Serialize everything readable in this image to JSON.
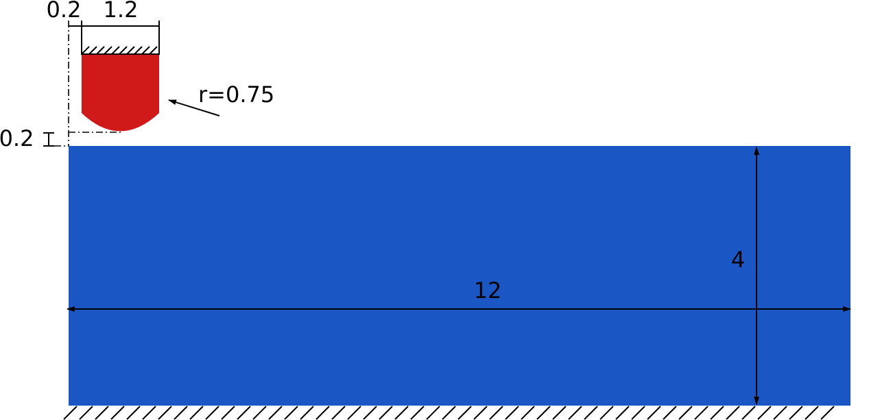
{
  "colors": {
    "block": "#1a56c4",
    "indenter": "#d01919",
    "line": "#000000",
    "background": "#ffffff"
  },
  "labels": {
    "gap_x": "0.2",
    "indenter_width": "1.2",
    "radius": "r=0.75",
    "gap_y": "0.2",
    "block_height": "4",
    "block_length": "12"
  }
}
